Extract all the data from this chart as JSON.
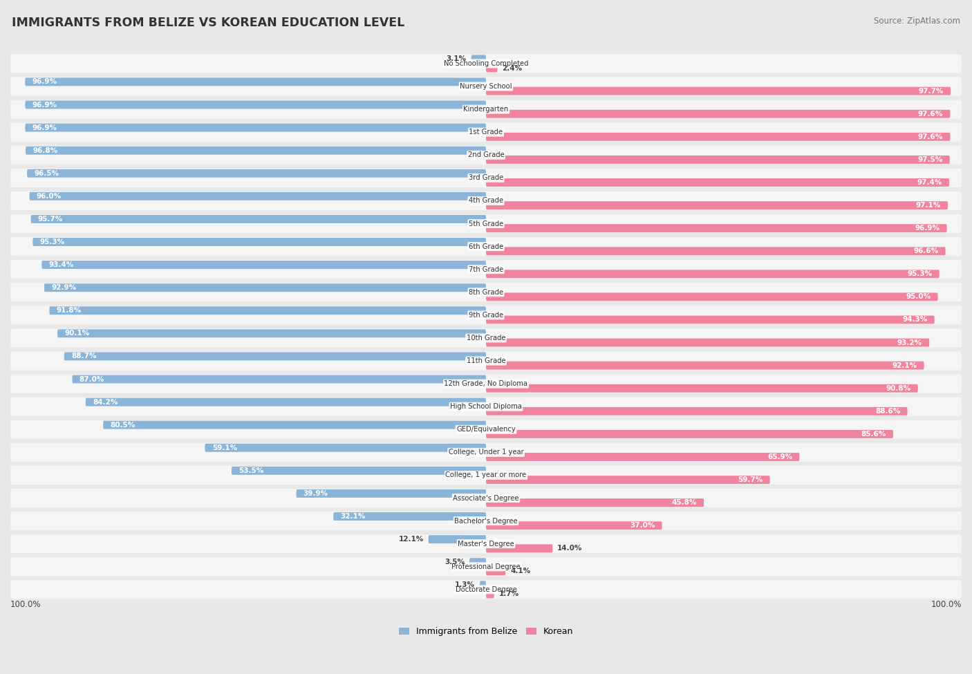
{
  "title": "IMMIGRANTS FROM BELIZE VS KOREAN EDUCATION LEVEL",
  "source": "Source: ZipAtlas.com",
  "categories": [
    "No Schooling Completed",
    "Nursery School",
    "Kindergarten",
    "1st Grade",
    "2nd Grade",
    "3rd Grade",
    "4th Grade",
    "5th Grade",
    "6th Grade",
    "7th Grade",
    "8th Grade",
    "9th Grade",
    "10th Grade",
    "11th Grade",
    "12th Grade, No Diploma",
    "High School Diploma",
    "GED/Equivalency",
    "College, Under 1 year",
    "College, 1 year or more",
    "Associate's Degree",
    "Bachelor's Degree",
    "Master's Degree",
    "Professional Degree",
    "Doctorate Degree"
  ],
  "belize_values": [
    3.1,
    96.9,
    96.9,
    96.9,
    96.8,
    96.5,
    96.0,
    95.7,
    95.3,
    93.4,
    92.9,
    91.8,
    90.1,
    88.7,
    87.0,
    84.2,
    80.5,
    59.1,
    53.5,
    39.9,
    32.1,
    12.1,
    3.5,
    1.3
  ],
  "korean_values": [
    2.4,
    97.7,
    97.6,
    97.6,
    97.5,
    97.4,
    97.1,
    96.9,
    96.6,
    95.3,
    95.0,
    94.3,
    93.2,
    92.1,
    90.8,
    88.6,
    85.6,
    65.9,
    59.7,
    45.8,
    37.0,
    14.0,
    4.1,
    1.7
  ],
  "belize_color": "#8ab4d8",
  "korean_color": "#f0849e",
  "background_color": "#e8e8e8",
  "bar_bg_color": "#f5f5f5",
  "legend_belize": "Immigrants from Belize",
  "legend_korean": "Korean",
  "axis_label_left": "100.0%",
  "axis_label_right": "100.0%",
  "xlim": 100.0
}
